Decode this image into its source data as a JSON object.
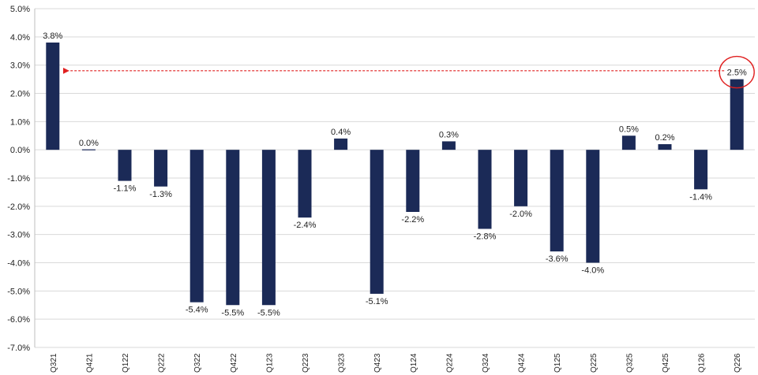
{
  "chart_data": {
    "type": "bar",
    "categories": [
      "Q321",
      "Q421",
      "Q122",
      "Q222",
      "Q322",
      "Q422",
      "Q123",
      "Q223",
      "Q323",
      "Q423",
      "Q124",
      "Q224",
      "Q324",
      "Q424",
      "Q125",
      "Q225",
      "Q325",
      "Q425",
      "Q126",
      "Q226"
    ],
    "values": [
      3.8,
      0.0,
      -1.1,
      -1.3,
      -5.4,
      -5.5,
      -5.5,
      -2.4,
      0.4,
      -5.1,
      -2.2,
      0.3,
      -2.8,
      -2.0,
      -3.6,
      -4.0,
      0.5,
      0.2,
      -1.4,
      2.5
    ],
    "data_labels": [
      "3.8%",
      "0.0%",
      "-1.1%",
      "-1.3%",
      "-5.4%",
      "-5.5%",
      "-5.5%",
      "-2.4%",
      "0.4%",
      "-5.1%",
      "-2.2%",
      "0.3%",
      "-2.8%",
      "-2.0%",
      "-3.6%",
      "-4.0%",
      "0.5%",
      "0.2%",
      "-1.4%",
      "2.5%"
    ],
    "title": "",
    "xlabel": "",
    "ylabel": "",
    "ylim": [
      -7.0,
      5.0
    ],
    "yticks": [
      5.0,
      4.0,
      3.0,
      2.0,
      1.0,
      0.0,
      -1.0,
      -2.0,
      -3.0,
      -4.0,
      -5.0,
      -6.0,
      -7.0
    ],
    "ytick_labels": [
      "5.0%",
      "4.0%",
      "3.0%",
      "2.0%",
      "1.0%",
      "0.0%",
      "-1.0%",
      "-2.0%",
      "-3.0%",
      "-4.0%",
      "-5.0%",
      "-6.0%",
      "-7.0%"
    ],
    "grid": true,
    "bar_color": "#1b2a57",
    "grid_color": "#d9d9d9",
    "annotation": {
      "type": "arrow",
      "from_category": "Q226",
      "to_category": "Q321",
      "value": 2.8,
      "color": "#e02020",
      "highlight_category": "Q226",
      "highlight_shape": "circle"
    }
  }
}
